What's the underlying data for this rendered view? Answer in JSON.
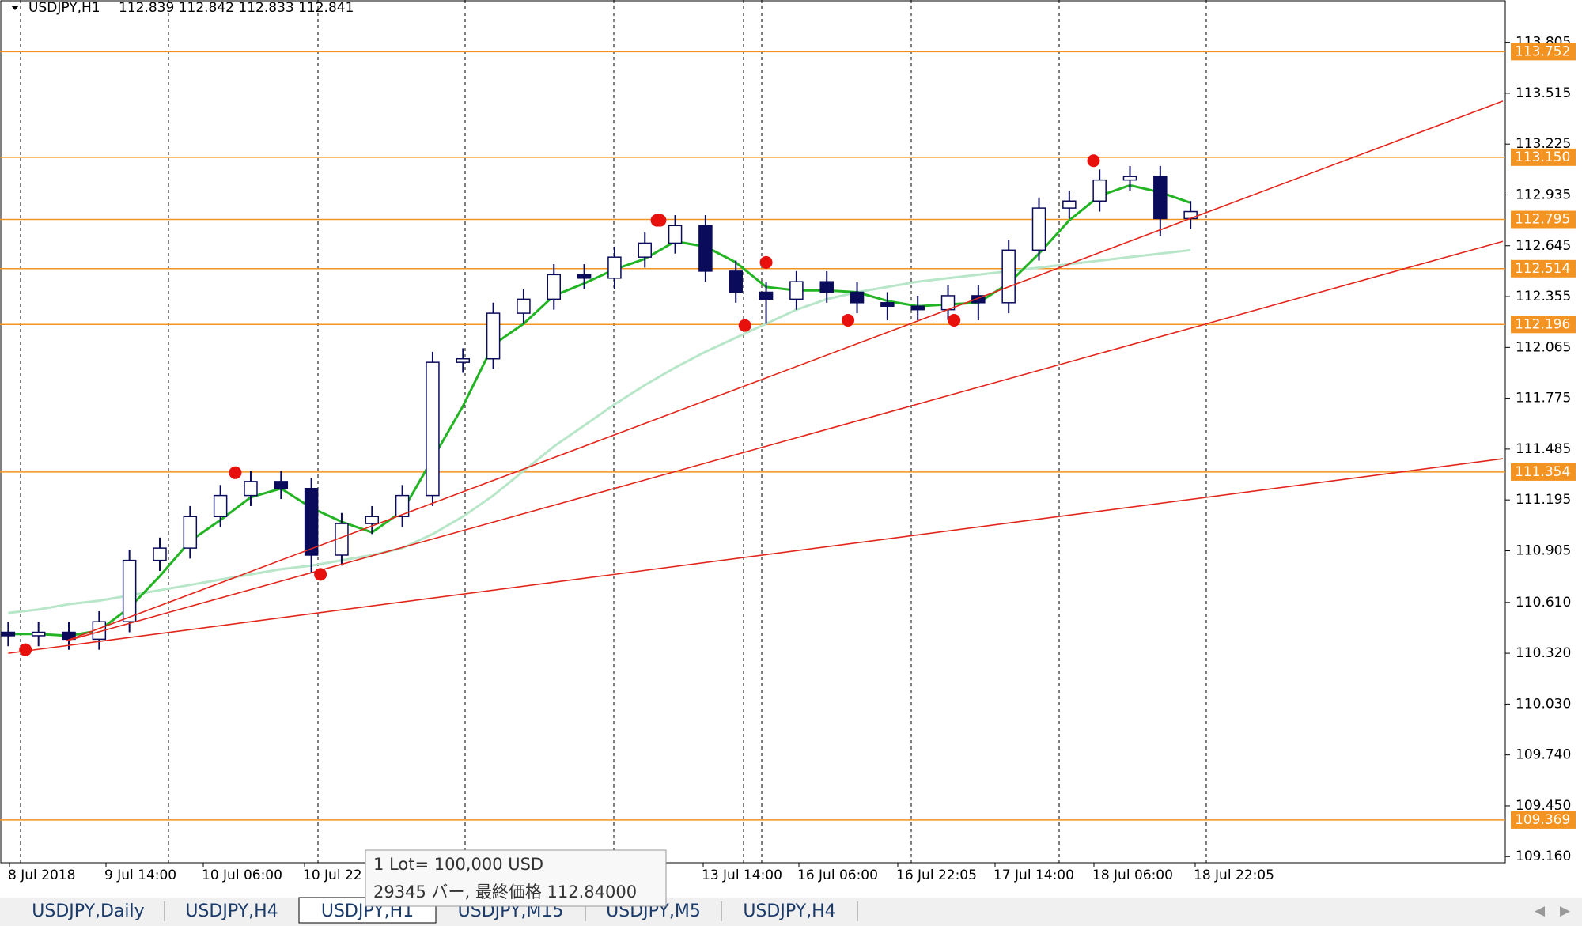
{
  "header": {
    "symbol": "USDJPY,H1",
    "ohlc": "112.839 112.842 112.833 112.841"
  },
  "chart_data": {
    "type": "candlestick",
    "ylim": [
      109.125,
      114.047
    ],
    "xlim": [
      -0.27,
      49.38
    ],
    "yticks": [
      113.805,
      113.515,
      113.225,
      112.935,
      112.645,
      112.355,
      112.065,
      111.775,
      111.485,
      111.195,
      110.905,
      {
        "value": 110.61,
        "label": "110.610"
      },
      {
        "value": 110.32,
        "label": "110.320"
      },
      {
        "value": 110.03,
        "label": "110.030"
      },
      {
        "value": 109.74,
        "label": "109.740"
      },
      {
        "value": 109.45,
        "label": "109.450"
      },
      {
        "value": 109.16,
        "label": "109.160"
      }
    ],
    "x_labels": [
      "8 Jul 2018",
      "9 Jul 14:00",
      "10 Jul 06:00",
      "10 Jul 22",
      "13 Jul 14:00",
      "16 Jul 06:00",
      "16 Jul 22:05",
      "17 Jul 14:00",
      "18 Jul 06:00",
      "18 Jul 22:05"
    ],
    "color": "#0b0b5c",
    "open": [
      110.44,
      110.42,
      110.44,
      110.4,
      110.5,
      110.85,
      110.92,
      111.1,
      111.22,
      111.3,
      111.26,
      110.88,
      111.06,
      111.1,
      111.22,
      111.98,
      112.0,
      112.26,
      112.34,
      112.48,
      112.46,
      112.58,
      112.66,
      112.76,
      112.5,
      112.38,
      112.34,
      112.44,
      112.38,
      112.32,
      112.3,
      112.28,
      112.36,
      112.32,
      112.62,
      112.86,
      112.9,
      113.02,
      113.04,
      112.8
    ],
    "high": [
      110.5,
      110.5,
      110.5,
      110.56,
      110.91,
      110.98,
      111.16,
      111.28,
      111.36,
      111.36,
      111.32,
      111.12,
      111.16,
      111.28,
      112.04,
      112.06,
      112.32,
      112.4,
      112.54,
      112.54,
      112.64,
      112.72,
      112.82,
      112.82,
      112.56,
      112.44,
      112.5,
      112.5,
      112.44,
      112.38,
      112.36,
      112.42,
      112.42,
      112.68,
      112.92,
      112.96,
      113.08,
      113.1,
      113.1,
      112.9
    ],
    "low": [
      110.36,
      110.36,
      110.34,
      110.34,
      110.44,
      110.79,
      110.86,
      111.04,
      111.16,
      111.2,
      110.78,
      110.82,
      111.0,
      111.04,
      111.16,
      111.92,
      111.94,
      112.2,
      112.28,
      112.4,
      112.4,
      112.52,
      112.6,
      112.44,
      112.32,
      112.2,
      112.28,
      112.32,
      112.26,
      112.22,
      112.22,
      112.22,
      112.22,
      112.26,
      112.56,
      112.8,
      112.84,
      112.96,
      112.7,
      112.74
    ],
    "close": [
      110.42,
      110.44,
      110.4,
      110.5,
      110.85,
      110.92,
      111.1,
      111.22,
      111.3,
      111.26,
      110.88,
      111.06,
      111.1,
      111.22,
      111.98,
      112.0,
      112.26,
      112.34,
      112.48,
      112.46,
      112.58,
      112.66,
      112.76,
      112.5,
      112.38,
      112.34,
      112.44,
      112.38,
      112.32,
      112.3,
      112.28,
      112.36,
      112.32,
      112.62,
      112.86,
      112.9,
      113.02,
      113.04,
      112.8,
      112.84
    ],
    "moving_averages": [
      {
        "color": "#b8e6c8",
        "values": [
          110.55,
          110.57,
          110.6,
          110.62,
          110.65,
          110.68,
          110.71,
          110.74,
          110.77,
          110.8,
          110.82,
          110.85,
          110.88,
          110.92,
          111.0,
          111.1,
          111.22,
          111.36,
          111.5,
          111.62,
          111.74,
          111.85,
          111.95,
          112.04,
          112.12,
          112.2,
          112.28,
          112.34,
          112.38,
          112.41,
          112.44,
          112.46,
          112.48,
          112.5,
          112.52,
          112.54,
          112.56,
          112.58,
          112.6,
          112.62
        ]
      },
      {
        "color": "#22b422",
        "values": [
          110.43,
          110.43,
          110.42,
          110.45,
          110.58,
          110.76,
          110.96,
          111.08,
          111.21,
          111.26,
          111.15,
          111.07,
          111.01,
          111.13,
          111.43,
          111.73,
          112.08,
          112.2,
          112.36,
          112.43,
          112.51,
          112.57,
          112.67,
          112.64,
          112.55,
          112.41,
          112.39,
          112.39,
          112.38,
          112.33,
          112.3,
          112.31,
          112.32,
          112.43,
          112.6,
          112.79,
          112.93,
          112.99,
          112.95,
          112.89
        ]
      }
    ],
    "levels": {
      "color": "#f39322",
      "values": [
        113.752,
        113.15,
        112.795,
        112.514,
        112.196,
        111.354,
        109.369
      ],
      "value_labels": [
        "113.752",
        "113.150",
        "112.795",
        "112.514",
        "112.196",
        "111.354",
        "109.369"
      ]
    },
    "trendlines": {
      "color": "#e3261c",
      "lines": [
        [
          [
            0,
            110.32
          ],
          [
            49.3,
            111.43
          ]
        ],
        [
          [
            1.9,
            110.39
          ],
          [
            49.3,
            112.67
          ]
        ],
        [
          [
            1.9,
            110.39
          ],
          [
            49.3,
            113.47
          ]
        ]
      ]
    },
    "markers": {
      "color": "#e8100c",
      "x": [
        0.57,
        7.49,
        10.3,
        21.4,
        21.5,
        24.3,
        25.0,
        27.7,
        31.2,
        35.8
      ],
      "y": [
        110.34,
        111.35,
        110.77,
        112.79,
        112.79,
        112.19,
        112.55,
        112.22,
        112.22,
        113.13
      ]
    }
  },
  "tooltip": {
    "lines": [
      "1 Lot= 100,000 USD",
      "29345 バー, 最終価格 112.84000"
    ]
  },
  "tabs": [
    "USDJPY,Daily",
    "USDJPY,H4",
    "USDJPY,H1",
    "USDJPY,M15",
    "USDJPY,M5",
    "USDJPY,H4"
  ]
}
